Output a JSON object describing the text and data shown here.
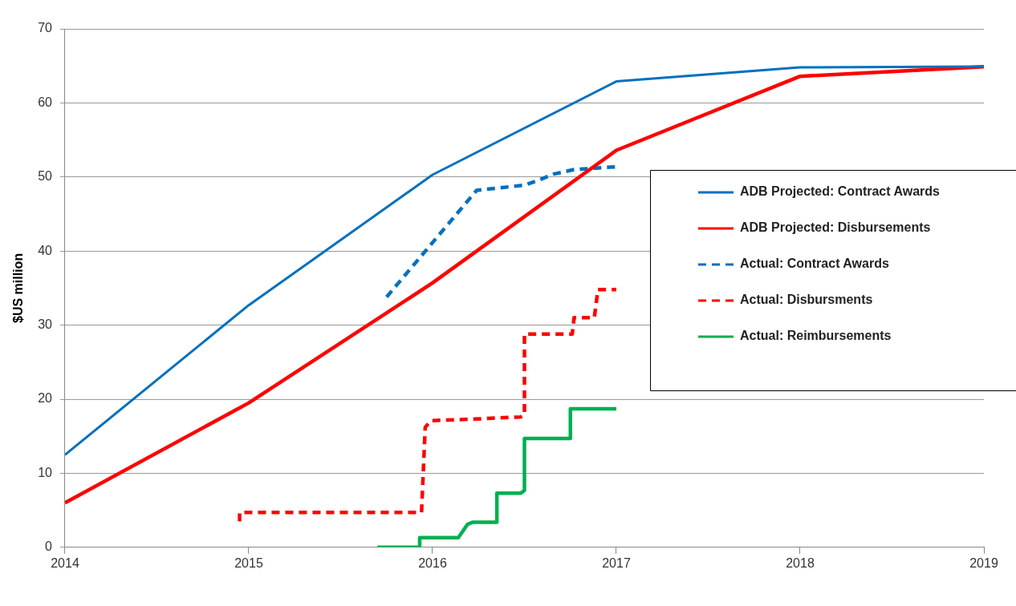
{
  "chart_data": {
    "type": "line",
    "ylabel": "$US million",
    "xlim": [
      2014,
      2019
    ],
    "xticks": [
      2014,
      2015,
      2016,
      2017,
      2018,
      2019
    ],
    "ylim": [
      0,
      70
    ],
    "yticks": [
      0,
      10,
      20,
      30,
      40,
      50,
      60,
      70
    ],
    "grid": "y",
    "legend": "right",
    "marker": "none",
    "series": [
      {
        "name": "ADB Projected: Contract Awards",
        "color": "#0070c0",
        "line_style": "solid",
        "x": [
          2014,
          2015,
          2016,
          2017,
          2018,
          2019
        ],
        "values": [
          12.5,
          32.7,
          50.3,
          62.9,
          64.8,
          64.9
        ]
      },
      {
        "name": "ADB Projected: Disbursements",
        "color": "#ff0000",
        "line_style": "solid",
        "x": [
          2014,
          2015,
          2016,
          2017,
          2018,
          2019
        ],
        "values": [
          6,
          19.5,
          35.7,
          53.6,
          63.6,
          64.9
        ]
      },
      {
        "name": "Actual: Contract Awards",
        "color": "#0070c0",
        "line_style": "dashed",
        "x": [
          2015.75,
          2016.24,
          2016.5,
          2016.57,
          2016.66,
          2016.77,
          2017.01
        ],
        "values": [
          33.8,
          48.2,
          48.9,
          49.5,
          50.4,
          51.0,
          51.4
        ]
      },
      {
        "name": "Actual: Disbursments",
        "color": "#ff0000",
        "line_style": "dashed",
        "x": [
          2014.95,
          2014.95,
          2015.94,
          2015.96,
          2015.99,
          2016.21,
          2016.48,
          2016.5,
          2016.5,
          2016.76,
          2016.77,
          2016.88,
          2016.9,
          2017.0
        ],
        "values": [
          3.5,
          4.7,
          4.7,
          16.2,
          17.1,
          17.3,
          17.6,
          17.9,
          28.8,
          28.8,
          31,
          31,
          34.8,
          34.8
        ]
      },
      {
        "name": "Actual: Reimbursements",
        "color": "#00b050",
        "line_style": "solid",
        "x": [
          2015.7,
          2015.93,
          2015.93,
          2016.14,
          2016.19,
          2016.22,
          2016.35,
          2016.35,
          2016.48,
          2016.5,
          2016.5,
          2016.75,
          2016.75,
          2017.0
        ],
        "values": [
          0,
          0,
          1.3,
          1.3,
          3.1,
          3.4,
          3.4,
          7.3,
          7.3,
          7.7,
          14.7,
          14.7,
          18.7,
          18.7
        ]
      }
    ]
  }
}
